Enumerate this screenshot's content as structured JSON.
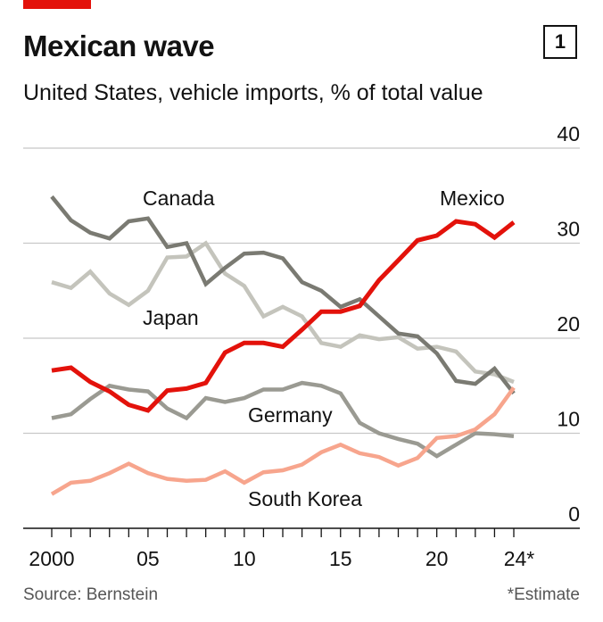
{
  "header": {
    "title": "Mexican wave",
    "chart_number": "1",
    "subtitle": "United States, vehicle imports, % of total value"
  },
  "footer": {
    "source": "Source: Bernstein",
    "note": "*Estimate"
  },
  "colors": {
    "accent": "#e3120b",
    "mexico": "#e3120b",
    "canada": "#7a7a72",
    "japan": "#c4c4bc",
    "germany": "#9a9a92",
    "south_korea": "#f7a58d",
    "grid": "#c8c8c8"
  },
  "chart_data": {
    "type": "line",
    "title": "Mexican wave",
    "subtitle": "United States, vehicle imports, % of total value",
    "x": [
      2000,
      2001,
      2002,
      2003,
      2004,
      2005,
      2006,
      2007,
      2008,
      2009,
      2010,
      2011,
      2012,
      2013,
      2014,
      2015,
      2016,
      2017,
      2018,
      2019,
      2020,
      2021,
      2022,
      2023,
      2024
    ],
    "x_tick_labels": [
      {
        "x": 2000,
        "label": "2000"
      },
      {
        "x": 2005,
        "label": "05"
      },
      {
        "x": 2010,
        "label": "10"
      },
      {
        "x": 2015,
        "label": "15"
      },
      {
        "x": 2020,
        "label": "20"
      },
      {
        "x": 2024,
        "label": "24*"
      }
    ],
    "y_ticks": [
      0,
      10,
      20,
      30,
      40
    ],
    "ylim": [
      0,
      40
    ],
    "grid": true,
    "series": [
      {
        "name": "Canada",
        "color_key": "canada",
        "values": [
          34.9,
          32.4,
          31.1,
          30.5,
          32.3,
          32.6,
          29.6,
          30.0,
          25.7,
          27.4,
          28.9,
          29.0,
          28.4,
          25.9,
          25.0,
          23.3,
          24.1,
          22.3,
          20.5,
          20.2,
          18.4,
          15.5,
          15.2,
          16.8,
          14.2
        ]
      },
      {
        "name": "Japan",
        "color_key": "japan",
        "values": [
          25.9,
          25.3,
          27.0,
          24.7,
          23.5,
          25.0,
          28.5,
          28.6,
          30.0,
          26.8,
          25.5,
          22.3,
          23.3,
          22.3,
          19.5,
          19.1,
          20.3,
          19.9,
          20.1,
          18.9,
          19.1,
          18.6,
          16.5,
          16.2,
          15.4
        ]
      },
      {
        "name": "Mexico",
        "color_key": "mexico",
        "values": [
          16.6,
          16.9,
          15.4,
          14.4,
          13.0,
          12.4,
          14.5,
          14.7,
          15.3,
          18.5,
          19.5,
          19.5,
          19.1,
          20.9,
          22.8,
          22.8,
          23.4,
          26.1,
          28.2,
          30.3,
          30.8,
          32.3,
          32.0,
          30.6,
          32.2
        ]
      },
      {
        "name": "Germany",
        "color_key": "germany",
        "values": [
          11.6,
          12.0,
          13.6,
          15.0,
          14.6,
          14.4,
          12.6,
          11.6,
          13.7,
          13.3,
          13.7,
          14.6,
          14.6,
          15.3,
          15.0,
          14.2,
          11.1,
          10.0,
          9.4,
          8.9,
          7.6,
          8.8,
          10.0,
          9.9,
          9.7
        ]
      },
      {
        "name": "South Korea",
        "color_key": "south_korea",
        "values": [
          3.6,
          4.8,
          5.0,
          5.8,
          6.8,
          5.8,
          5.2,
          5.0,
          5.1,
          6.0,
          4.8,
          5.9,
          6.1,
          6.7,
          8.0,
          8.8,
          7.9,
          7.5,
          6.6,
          7.4,
          9.5,
          9.7,
          10.4,
          12.0,
          14.8
        ]
      }
    ],
    "labels": {
      "canada": "Canada",
      "japan": "Japan",
      "mexico": "Mexico",
      "germany": "Germany",
      "south_korea": "South Korea"
    }
  }
}
